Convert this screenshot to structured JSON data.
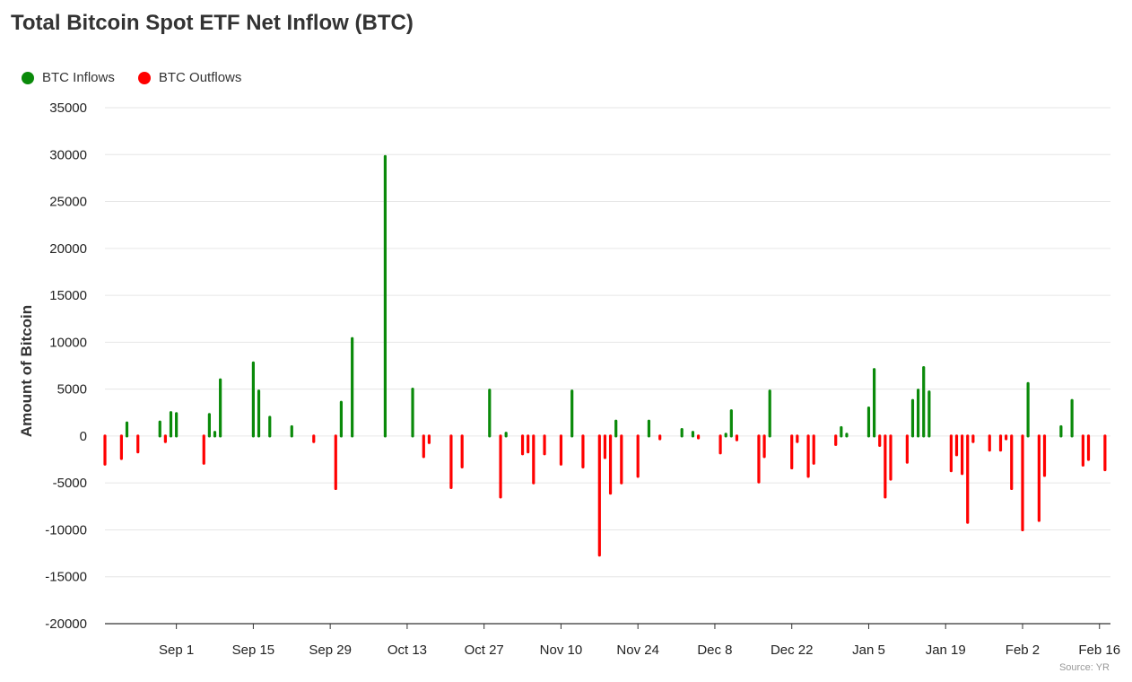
{
  "title": "Total Bitcoin Spot ETF Net Inflow (BTC)",
  "source": "Source: YR",
  "legend": [
    {
      "label": "BTC Inflows",
      "color": "#0a8a0a"
    },
    {
      "label": "BTC Outflows",
      "color": "#ff0000"
    }
  ],
  "chart_data": {
    "type": "bar",
    "title": "Total Bitcoin Spot ETF Net Inflow (BTC)",
    "xlabel": "",
    "ylabel": "Amount of Bitcoin",
    "ylim": [
      -20000,
      35000
    ],
    "yticks": [
      35000,
      30000,
      25000,
      20000,
      15000,
      10000,
      5000,
      0,
      -5000,
      -10000,
      -15000,
      -20000
    ],
    "xlim": [
      "2025-08-19",
      "2026-02-18"
    ],
    "xticks": [
      {
        "label": "Sep 1",
        "date": "2025-09-01"
      },
      {
        "label": "Sep 15",
        "date": "2025-09-15"
      },
      {
        "label": "Sep 29",
        "date": "2025-09-29"
      },
      {
        "label": "Oct 13",
        "date": "2025-10-13"
      },
      {
        "label": "Oct 27",
        "date": "2025-10-27"
      },
      {
        "label": "Nov 10",
        "date": "2025-11-10"
      },
      {
        "label": "Nov 24",
        "date": "2025-11-24"
      },
      {
        "label": "Dec 8",
        "date": "2025-12-08"
      },
      {
        "label": "Dec 22",
        "date": "2025-12-22"
      },
      {
        "label": "Jan 5",
        "date": "2026-01-05"
      },
      {
        "label": "Jan 19",
        "date": "2026-01-19"
      },
      {
        "label": "Feb 2",
        "date": "2026-02-02"
      },
      {
        "label": "Feb 16",
        "date": "2026-02-16"
      }
    ],
    "grid": true,
    "legend_position": "top-left",
    "colors": {
      "inflow": "#0a8a0a",
      "outflow": "#ff0000"
    },
    "series": [
      {
        "name": "BTC Inflows / Outflows",
        "points": [
          {
            "x": "2025-08-19",
            "y": -3000
          },
          {
            "x": "2025-08-22",
            "y": -2400
          },
          {
            "x": "2025-08-23",
            "y": 1400
          },
          {
            "x": "2025-08-25",
            "y": -1700
          },
          {
            "x": "2025-08-29",
            "y": 1500
          },
          {
            "x": "2025-08-30",
            "y": -600
          },
          {
            "x": "2025-08-31",
            "y": 2500
          },
          {
            "x": "2025-09-01",
            "y": 2400
          },
          {
            "x": "2025-09-06",
            "y": -2900
          },
          {
            "x": "2025-09-07",
            "y": 2300
          },
          {
            "x": "2025-09-08",
            "y": 400
          },
          {
            "x": "2025-09-09",
            "y": 6000
          },
          {
            "x": "2025-09-15",
            "y": 7800
          },
          {
            "x": "2025-09-16",
            "y": 4800
          },
          {
            "x": "2025-09-18",
            "y": 2000
          },
          {
            "x": "2025-09-22",
            "y": 1000
          },
          {
            "x": "2025-09-26",
            "y": -600
          },
          {
            "x": "2025-09-30",
            "y": -5600
          },
          {
            "x": "2025-10-01",
            "y": 3600
          },
          {
            "x": "2025-10-03",
            "y": 10400
          },
          {
            "x": "2025-10-09",
            "y": 29800
          },
          {
            "x": "2025-10-14",
            "y": 5000
          },
          {
            "x": "2025-10-16",
            "y": -2200
          },
          {
            "x": "2025-10-17",
            "y": -700
          },
          {
            "x": "2025-10-21",
            "y": -5500
          },
          {
            "x": "2025-10-23",
            "y": -3300
          },
          {
            "x": "2025-10-28",
            "y": 4900
          },
          {
            "x": "2025-10-30",
            "y": -6500
          },
          {
            "x": "2025-10-31",
            "y": 300
          },
          {
            "x": "2025-11-03",
            "y": -1900
          },
          {
            "x": "2025-11-04",
            "y": -1700
          },
          {
            "x": "2025-11-05",
            "y": -5000
          },
          {
            "x": "2025-11-07",
            "y": -1900
          },
          {
            "x": "2025-11-10",
            "y": -3000
          },
          {
            "x": "2025-11-12",
            "y": 4800
          },
          {
            "x": "2025-11-14",
            "y": -3300
          },
          {
            "x": "2025-11-17",
            "y": -12700
          },
          {
            "x": "2025-11-18",
            "y": -2300
          },
          {
            "x": "2025-11-19",
            "y": -6100
          },
          {
            "x": "2025-11-20",
            "y": 1600
          },
          {
            "x": "2025-11-21",
            "y": -5000
          },
          {
            "x": "2025-11-24",
            "y": -4300
          },
          {
            "x": "2025-11-26",
            "y": 1600
          },
          {
            "x": "2025-11-28",
            "y": -300
          },
          {
            "x": "2025-12-02",
            "y": 700
          },
          {
            "x": "2025-12-04",
            "y": 400
          },
          {
            "x": "2025-12-05",
            "y": -200
          },
          {
            "x": "2025-12-09",
            "y": -1800
          },
          {
            "x": "2025-12-10",
            "y": 200
          },
          {
            "x": "2025-12-11",
            "y": 2700
          },
          {
            "x": "2025-12-12",
            "y": -400
          },
          {
            "x": "2025-12-16",
            "y": -4900
          },
          {
            "x": "2025-12-17",
            "y": -2200
          },
          {
            "x": "2025-12-18",
            "y": 4800
          },
          {
            "x": "2025-12-22",
            "y": -3400
          },
          {
            "x": "2025-12-23",
            "y": -600
          },
          {
            "x": "2025-12-25",
            "y": -4300
          },
          {
            "x": "2025-12-26",
            "y": -2900
          },
          {
            "x": "2025-12-30",
            "y": -900
          },
          {
            "x": "2025-12-31",
            "y": 900
          },
          {
            "x": "2026-01-01",
            "y": 200
          },
          {
            "x": "2026-01-05",
            "y": 3000
          },
          {
            "x": "2026-01-06",
            "y": 7100
          },
          {
            "x": "2026-01-07",
            "y": -1000
          },
          {
            "x": "2026-01-08",
            "y": -6500
          },
          {
            "x": "2026-01-09",
            "y": -4600
          },
          {
            "x": "2026-01-12",
            "y": -2800
          },
          {
            "x": "2026-01-13",
            "y": 3800
          },
          {
            "x": "2026-01-14",
            "y": 4900
          },
          {
            "x": "2026-01-15",
            "y": 7300
          },
          {
            "x": "2026-01-16",
            "y": 4700
          },
          {
            "x": "2026-01-20",
            "y": -3700
          },
          {
            "x": "2026-01-21",
            "y": -2000
          },
          {
            "x": "2026-01-22",
            "y": -4000
          },
          {
            "x": "2026-01-23",
            "y": -9200
          },
          {
            "x": "2026-01-24",
            "y": -600
          },
          {
            "x": "2026-01-27",
            "y": -1500
          },
          {
            "x": "2026-01-29",
            "y": -1500
          },
          {
            "x": "2026-01-30",
            "y": -300
          },
          {
            "x": "2026-01-31",
            "y": -5600
          },
          {
            "x": "2026-02-02",
            "y": -10000
          },
          {
            "x": "2026-02-03",
            "y": 5600
          },
          {
            "x": "2026-02-05",
            "y": -9000
          },
          {
            "x": "2026-02-06",
            "y": -4200
          },
          {
            "x": "2026-02-09",
            "y": 1000
          },
          {
            "x": "2026-02-11",
            "y": 3800
          },
          {
            "x": "2026-02-13",
            "y": -3100
          },
          {
            "x": "2026-02-14",
            "y": -2500
          },
          {
            "x": "2026-02-17",
            "y": -3600
          }
        ]
      }
    ]
  }
}
